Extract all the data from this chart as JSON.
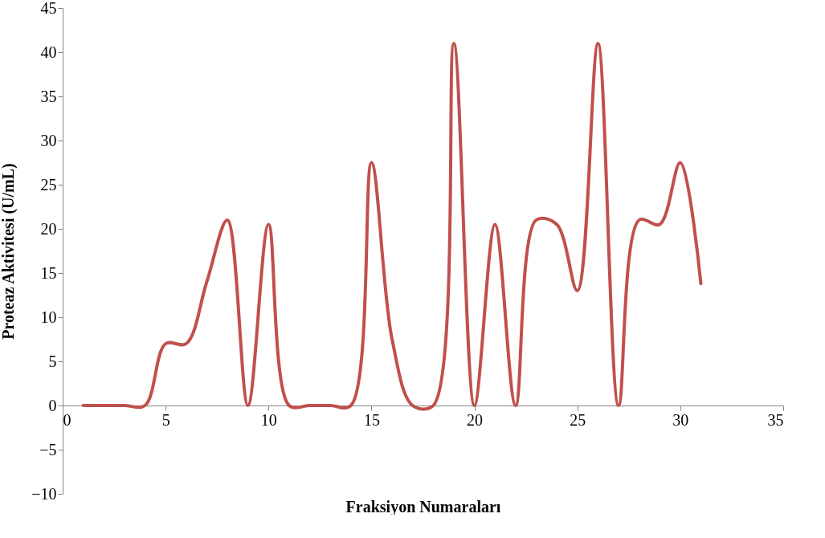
{
  "chart_data": {
    "type": "line",
    "xlabel": "Fraksiyon Numaraları",
    "ylabel": "Proteaz Aktivitesi (U/mL)",
    "x": [
      1,
      2,
      3,
      4,
      5,
      6,
      7,
      8,
      9,
      10,
      11,
      12,
      13,
      14,
      15,
      16,
      17,
      18,
      19,
      20,
      21,
      22,
      23,
      24,
      25,
      26,
      27,
      28,
      29,
      30,
      31
    ],
    "series": [
      {
        "color": "#c0504d",
        "values": [
          0,
          0,
          0,
          0,
          7,
          7,
          14,
          21,
          0,
          20.5,
          0,
          0,
          0,
          0,
          27.5,
          7.5,
          0,
          0,
          41,
          0,
          20.5,
          0,
          21,
          20.5,
          13,
          41,
          0,
          21,
          20.5,
          27.5,
          13.8
        ]
      }
    ],
    "xlim": [
      0,
      35
    ],
    "xticks": [
      0,
      5,
      10,
      15,
      20,
      25,
      30,
      35
    ],
    "ylim": [
      -10,
      45
    ],
    "yticks": [
      -10,
      -5,
      0,
      5,
      10,
      15,
      20,
      25,
      30,
      35,
      40,
      45
    ],
    "grid": false,
    "legend": false,
    "marker": "none",
    "line_style": "solid"
  }
}
